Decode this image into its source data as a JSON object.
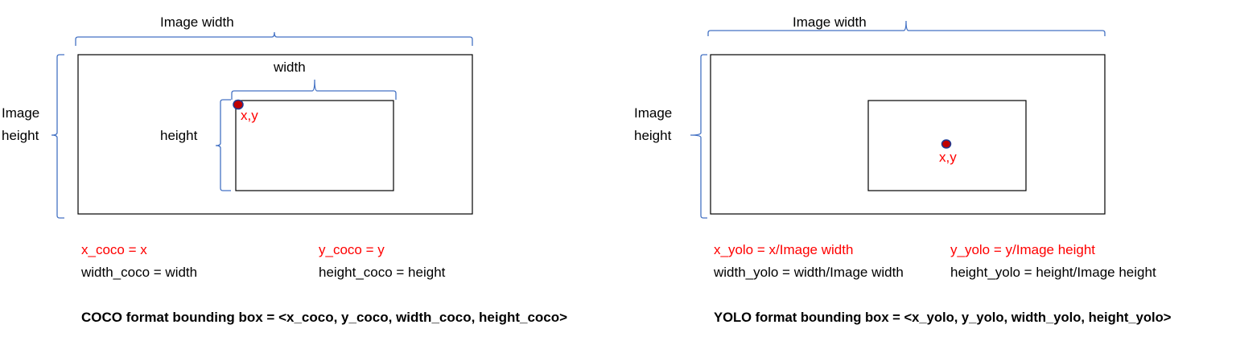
{
  "coco": {
    "image_width_label": "Image width",
    "image_height_label_line1": "Image",
    "image_height_label_line2": "height",
    "box_width_label": "width",
    "box_height_label": "height",
    "point_label": "x,y",
    "formula_x": "x_coco = x",
    "formula_y": "y_coco = y",
    "formula_w": "width_coco = width",
    "formula_h": "height_coco = height",
    "summary": "COCO format bounding box = <x_coco, y_coco, width_coco, height_coco>"
  },
  "yolo": {
    "image_width_label": "Image width",
    "image_height_label_line1": "Image",
    "image_height_label_line2": "height",
    "point_label": "x,y",
    "formula_x": "x_yolo = x/Image width",
    "formula_y": "y_yolo = y/Image height",
    "formula_w": "width_yolo = width/Image width",
    "formula_h": "height_yolo = height/Image height",
    "summary": "YOLO format bounding box = <x_yolo, y_yolo, width_yolo, height_yolo>"
  },
  "colors": {
    "brace": "#4472c4",
    "highlight": "#ff0000",
    "point_fill": "#c00000",
    "point_stroke": "#1f3a93"
  }
}
